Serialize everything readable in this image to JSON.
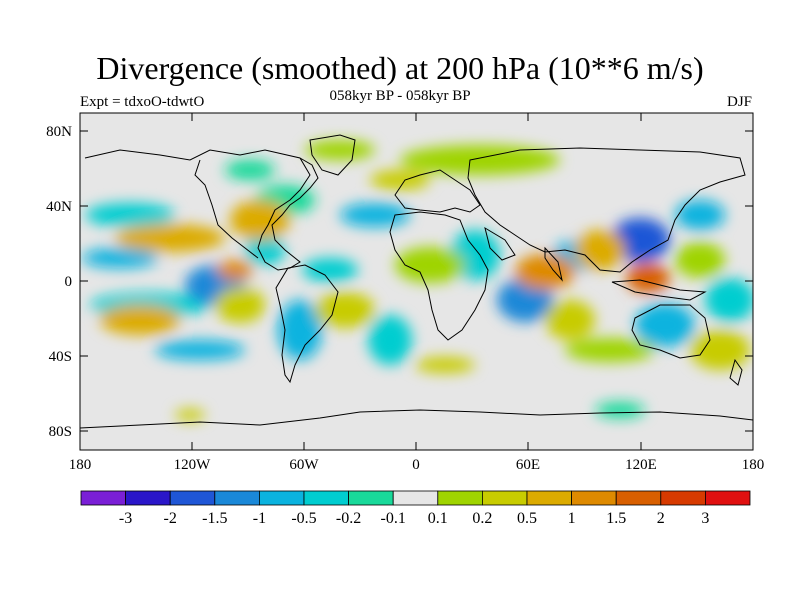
{
  "header": {
    "title": "Divergence (smoothed) at 200 hPa (10**6 m/s)",
    "subtitle": "058kyr BP - 058kyr BP",
    "experiment": "Expt = tdxoO-tdwtO",
    "season": "DJF"
  },
  "axes": {
    "x_ticks": [
      "180",
      "120W",
      "60W",
      "0",
      "60E",
      "120E",
      "180"
    ],
    "y_ticks": [
      "80N",
      "40N",
      "0",
      "40S",
      "80S"
    ]
  },
  "colorbar": {
    "labels": [
      "-3",
      "-2",
      "-1.5",
      "-1",
      "-0.5",
      "-0.2",
      "-0.1",
      "0.1",
      "0.2",
      "0.5",
      "1",
      "1.5",
      "2",
      "3"
    ],
    "colors": [
      "#7a1fd6",
      "#2a16c9",
      "#1f56d6",
      "#1a88d8",
      "#0ab3df",
      "#00cdd0",
      "#19d99a",
      "#e6e6e6",
      "#9fd400",
      "#c8cc00",
      "#dcab00",
      "#de8a00",
      "#d85f00",
      "#d73a00",
      "#e01010"
    ]
  }
}
